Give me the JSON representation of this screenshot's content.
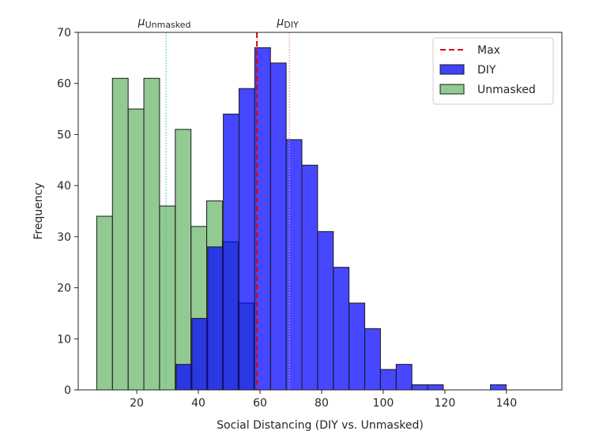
{
  "chart_data": {
    "type": "bar",
    "title": "",
    "xlabel": "Social Distancing (DIY vs. Unmasked)",
    "ylabel": "Frequency",
    "xlim": [
      1,
      158
    ],
    "ylim": [
      0,
      70
    ],
    "xticks": [
      20,
      40,
      60,
      80,
      100,
      120,
      140
    ],
    "yticks": [
      0,
      10,
      20,
      30,
      40,
      50,
      60,
      70
    ],
    "grid": false,
    "legend_position": "top-right",
    "colors": {
      "unmasked": "#4aa64a",
      "diy": "#0000ff",
      "max_line": "#e00000",
      "mu_unmasked_line": "#2ec9d8",
      "mu_diy_line": "#d98ad9",
      "edge": "#1a1a1a"
    },
    "series": [
      {
        "name": "Unmasked",
        "bin_width": 5.1,
        "bins": [
          {
            "x0": 7.0,
            "count": 34
          },
          {
            "x0": 12.1,
            "count": 61
          },
          {
            "x0": 17.2,
            "count": 55
          },
          {
            "x0": 22.3,
            "count": 61
          },
          {
            "x0": 27.4,
            "count": 36
          },
          {
            "x0": 32.5,
            "count": 51
          },
          {
            "x0": 37.6,
            "count": 32
          },
          {
            "x0": 42.7,
            "count": 37
          },
          {
            "x0": 47.8,
            "count": 29
          },
          {
            "x0": 52.9,
            "count": 17
          }
        ]
      },
      {
        "name": "DIY",
        "bin_width": 5.1,
        "bins": [
          {
            "x0": 32.8,
            "count": 5
          },
          {
            "x0": 37.9,
            "count": 14
          },
          {
            "x0": 43.0,
            "count": 28
          },
          {
            "x0": 48.1,
            "count": 54
          },
          {
            "x0": 53.2,
            "count": 59
          },
          {
            "x0": 58.3,
            "count": 67
          },
          {
            "x0": 63.4,
            "count": 64
          },
          {
            "x0": 68.5,
            "count": 49
          },
          {
            "x0": 73.6,
            "count": 44
          },
          {
            "x0": 78.7,
            "count": 31
          },
          {
            "x0": 83.8,
            "count": 24
          },
          {
            "x0": 88.9,
            "count": 17
          },
          {
            "x0": 94.0,
            "count": 12
          },
          {
            "x0": 99.1,
            "count": 4
          },
          {
            "x0": 104.2,
            "count": 5
          },
          {
            "x0": 109.3,
            "count": 1
          },
          {
            "x0": 114.4,
            "count": 1
          },
          {
            "x0": 119.5,
            "count": 0
          },
          {
            "x0": 124.6,
            "count": 0
          },
          {
            "x0": 129.7,
            "count": 0
          },
          {
            "x0": 134.8,
            "count": 1
          }
        ]
      }
    ],
    "vlines": [
      {
        "name": "Max",
        "x": 59,
        "style": "dashed"
      },
      {
        "name": "mu_unmasked",
        "x": 29.5,
        "style": "dotted"
      },
      {
        "name": "mu_diy",
        "x": 69.5,
        "style": "dotted"
      }
    ],
    "annotations": [
      {
        "symbol": "μ",
        "sub": "Unmasked",
        "x": 29.5
      },
      {
        "symbol": "μ",
        "sub": "DIY",
        "x": 69.5
      }
    ],
    "legend": [
      {
        "label": "Max",
        "kind": "line"
      },
      {
        "label": "DIY",
        "kind": "patch"
      },
      {
        "label": "Unmasked",
        "kind": "patch"
      }
    ]
  }
}
